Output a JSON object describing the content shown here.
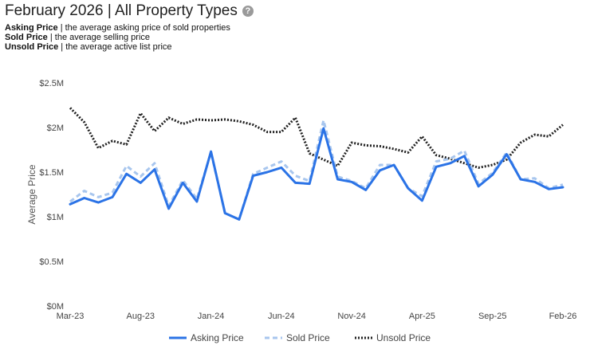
{
  "header": {
    "title": "February 2026 | All Property Types",
    "help_icon": "help-circle-icon",
    "definitions": [
      {
        "term": "Asking Price",
        "text": " | the average asking price of sold properties"
      },
      {
        "term": "Sold Price",
        "text": " | the average selling price"
      },
      {
        "term": "Unsold Price",
        "text": " | the average active list price"
      }
    ]
  },
  "chart_data": {
    "type": "line",
    "title": "February 2026 | All Property Types",
    "ylabel": "Average Price",
    "xlabel": "",
    "ylim": [
      0,
      2500000
    ],
    "y_ticks": [
      {
        "value": 0,
        "label": "$0M"
      },
      {
        "value": 500000,
        "label": "$0.5M"
      },
      {
        "value": 1000000,
        "label": "$1M"
      },
      {
        "value": 1500000,
        "label": "$1.5M"
      },
      {
        "value": 2000000,
        "label": "$2M"
      },
      {
        "value": 2500000,
        "label": "$2.5M"
      }
    ],
    "x": [
      "Mar-23",
      "Apr-23",
      "May-23",
      "Jun-23",
      "Jul-23",
      "Aug-23",
      "Sep-23",
      "Oct-23",
      "Nov-23",
      "Dec-23",
      "Jan-24",
      "Feb-24",
      "Mar-24",
      "Apr-24",
      "May-24",
      "Jun-24",
      "Jul-24",
      "Aug-24",
      "Sep-24",
      "Oct-24",
      "Nov-24",
      "Dec-24",
      "Jan-25",
      "Feb-25",
      "Mar-25",
      "Apr-25",
      "May-25",
      "Jun-25",
      "Jul-25",
      "Aug-25",
      "Sep-25",
      "Oct-25",
      "Nov-25",
      "Dec-25",
      "Jan-26",
      "Feb-26"
    ],
    "x_tick_labels": [
      {
        "index": 0,
        "label": "Mar-23"
      },
      {
        "index": 5,
        "label": "Aug-23"
      },
      {
        "index": 10,
        "label": "Jan-24"
      },
      {
        "index": 15,
        "label": "Jun-24"
      },
      {
        "index": 20,
        "label": "Nov-24"
      },
      {
        "index": 25,
        "label": "Apr-25"
      },
      {
        "index": 30,
        "label": "Sep-25"
      },
      {
        "index": 35,
        "label": "Feb-26"
      }
    ],
    "legend_position": "bottom",
    "grid": false,
    "series": [
      {
        "name": "Asking Price",
        "color": "#2b73e6",
        "style": "solid",
        "values": [
          1140000,
          1210000,
          1160000,
          1220000,
          1480000,
          1380000,
          1530000,
          1090000,
          1380000,
          1170000,
          1730000,
          1040000,
          970000,
          1460000,
          1500000,
          1550000,
          1380000,
          1370000,
          1990000,
          1420000,
          1390000,
          1300000,
          1520000,
          1580000,
          1320000,
          1180000,
          1560000,
          1600000,
          1680000,
          1340000,
          1470000,
          1700000,
          1420000,
          1390000,
          1310000,
          1330000
        ]
      },
      {
        "name": "Sold Price",
        "color": "#a8c6ee",
        "style": "dashed",
        "values": [
          1170000,
          1290000,
          1220000,
          1270000,
          1570000,
          1450000,
          1600000,
          1120000,
          1410000,
          1200000,
          1720000,
          1040000,
          970000,
          1480000,
          1550000,
          1620000,
          1460000,
          1400000,
          2080000,
          1450000,
          1400000,
          1320000,
          1580000,
          1580000,
          1320000,
          1230000,
          1620000,
          1650000,
          1740000,
          1370000,
          1490000,
          1720000,
          1420000,
          1430000,
          1320000,
          1360000
        ]
      },
      {
        "name": "Unsold Price",
        "color": "#222222",
        "style": "dotted",
        "values": [
          2220000,
          2060000,
          1770000,
          1850000,
          1810000,
          2160000,
          1960000,
          2110000,
          2040000,
          2090000,
          2080000,
          2090000,
          2070000,
          2030000,
          1950000,
          1950000,
          2110000,
          1710000,
          1640000,
          1570000,
          1830000,
          1800000,
          1790000,
          1760000,
          1720000,
          1900000,
          1690000,
          1650000,
          1600000,
          1550000,
          1580000,
          1640000,
          1830000,
          1920000,
          1900000,
          2030000
        ]
      }
    ]
  }
}
